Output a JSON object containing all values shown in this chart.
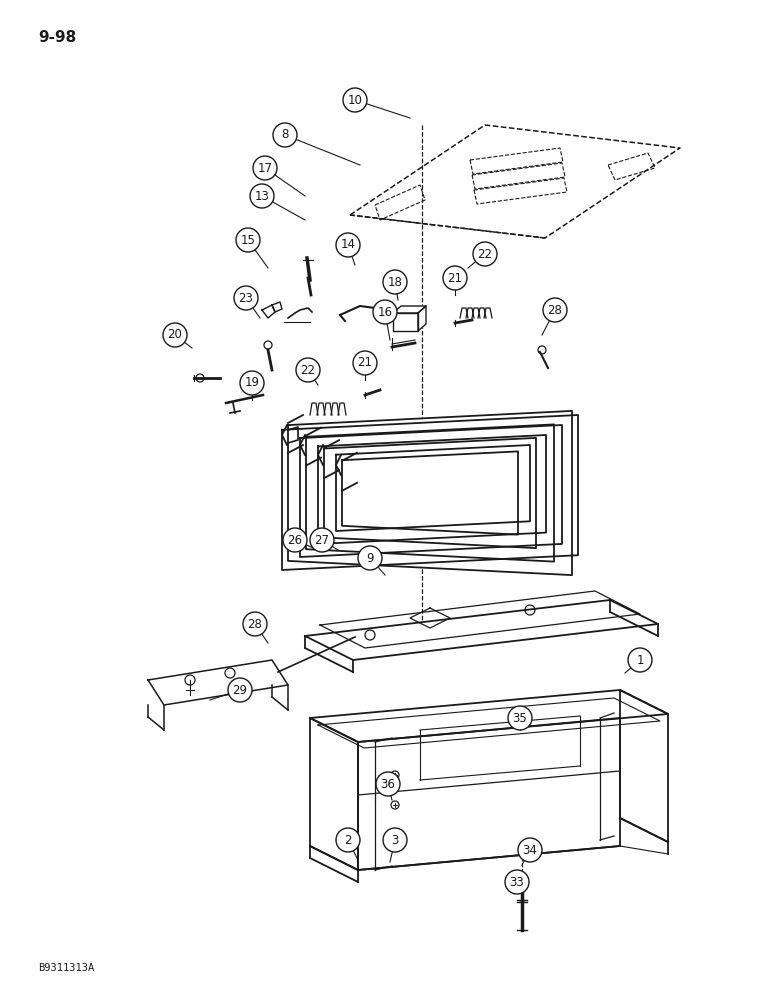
{
  "page_label": "9-98",
  "catalog_code": "B9311313A",
  "bg": "#ffffff",
  "lc": "#1a1a1a",
  "figsize": [
    7.76,
    10.0
  ],
  "dpi": 100
}
